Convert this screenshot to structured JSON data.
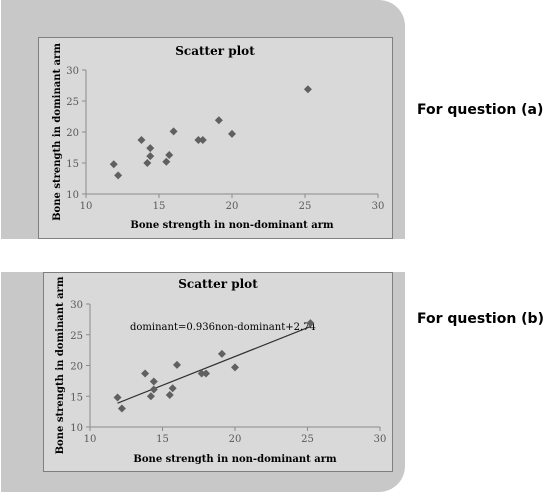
{
  "side_labels": {
    "a": "For question (a)",
    "b": "For question (b)"
  },
  "colors": {
    "panel": "#c8c8c8",
    "plot_area": "#d9d9d9",
    "marker": "#606060",
    "trendline": "#303030"
  },
  "chart_data": [
    {
      "type": "scatter",
      "title": "Scatter plot",
      "xlabel": "Bone strength in non-dominant  arm",
      "ylabel": "Bone strength in dominant  arm",
      "xlim": [
        10,
        30
      ],
      "ylim": [
        10,
        30
      ],
      "xticks": [
        10,
        15,
        20,
        25,
        30
      ],
      "yticks": [
        10,
        15,
        20,
        25,
        30
      ],
      "grid": false,
      "marker": "diamond",
      "points": [
        [
          11.9,
          14.8
        ],
        [
          12.2,
          13.0
        ],
        [
          13.8,
          18.7
        ],
        [
          14.2,
          15.0
        ],
        [
          14.4,
          17.4
        ],
        [
          14.4,
          16.1
        ],
        [
          15.5,
          15.2
        ],
        [
          15.7,
          16.3
        ],
        [
          16.0,
          20.1
        ],
        [
          17.7,
          18.7
        ],
        [
          18.0,
          18.7
        ],
        [
          19.1,
          21.9
        ],
        [
          20.0,
          19.7
        ],
        [
          25.2,
          26.9
        ]
      ]
    },
    {
      "type": "scatter",
      "title": "Scatter plot",
      "xlabel": "Bone strength in non-dominant  arm",
      "ylabel": "Bone strength in dominant  arm",
      "xlim": [
        10,
        30
      ],
      "ylim": [
        10,
        30
      ],
      "xticks": [
        10,
        15,
        20,
        25,
        30
      ],
      "yticks": [
        10,
        15,
        20,
        25,
        30
      ],
      "grid": false,
      "marker": "diamond",
      "points": [
        [
          11.9,
          14.8
        ],
        [
          12.2,
          13.0
        ],
        [
          13.8,
          18.7
        ],
        [
          14.2,
          15.0
        ],
        [
          14.4,
          17.4
        ],
        [
          14.4,
          16.1
        ],
        [
          15.5,
          15.2
        ],
        [
          15.7,
          16.3
        ],
        [
          16.0,
          20.1
        ],
        [
          17.7,
          18.7
        ],
        [
          18.0,
          18.7
        ],
        [
          19.1,
          21.9
        ],
        [
          20.0,
          19.7
        ],
        [
          25.2,
          26.9
        ]
      ],
      "trendline": {
        "slope": 0.936,
        "intercept": 2.74,
        "x_range": [
          11.9,
          25.2
        ]
      },
      "equation": "dominant=0.936non-dominant+2.74"
    }
  ]
}
